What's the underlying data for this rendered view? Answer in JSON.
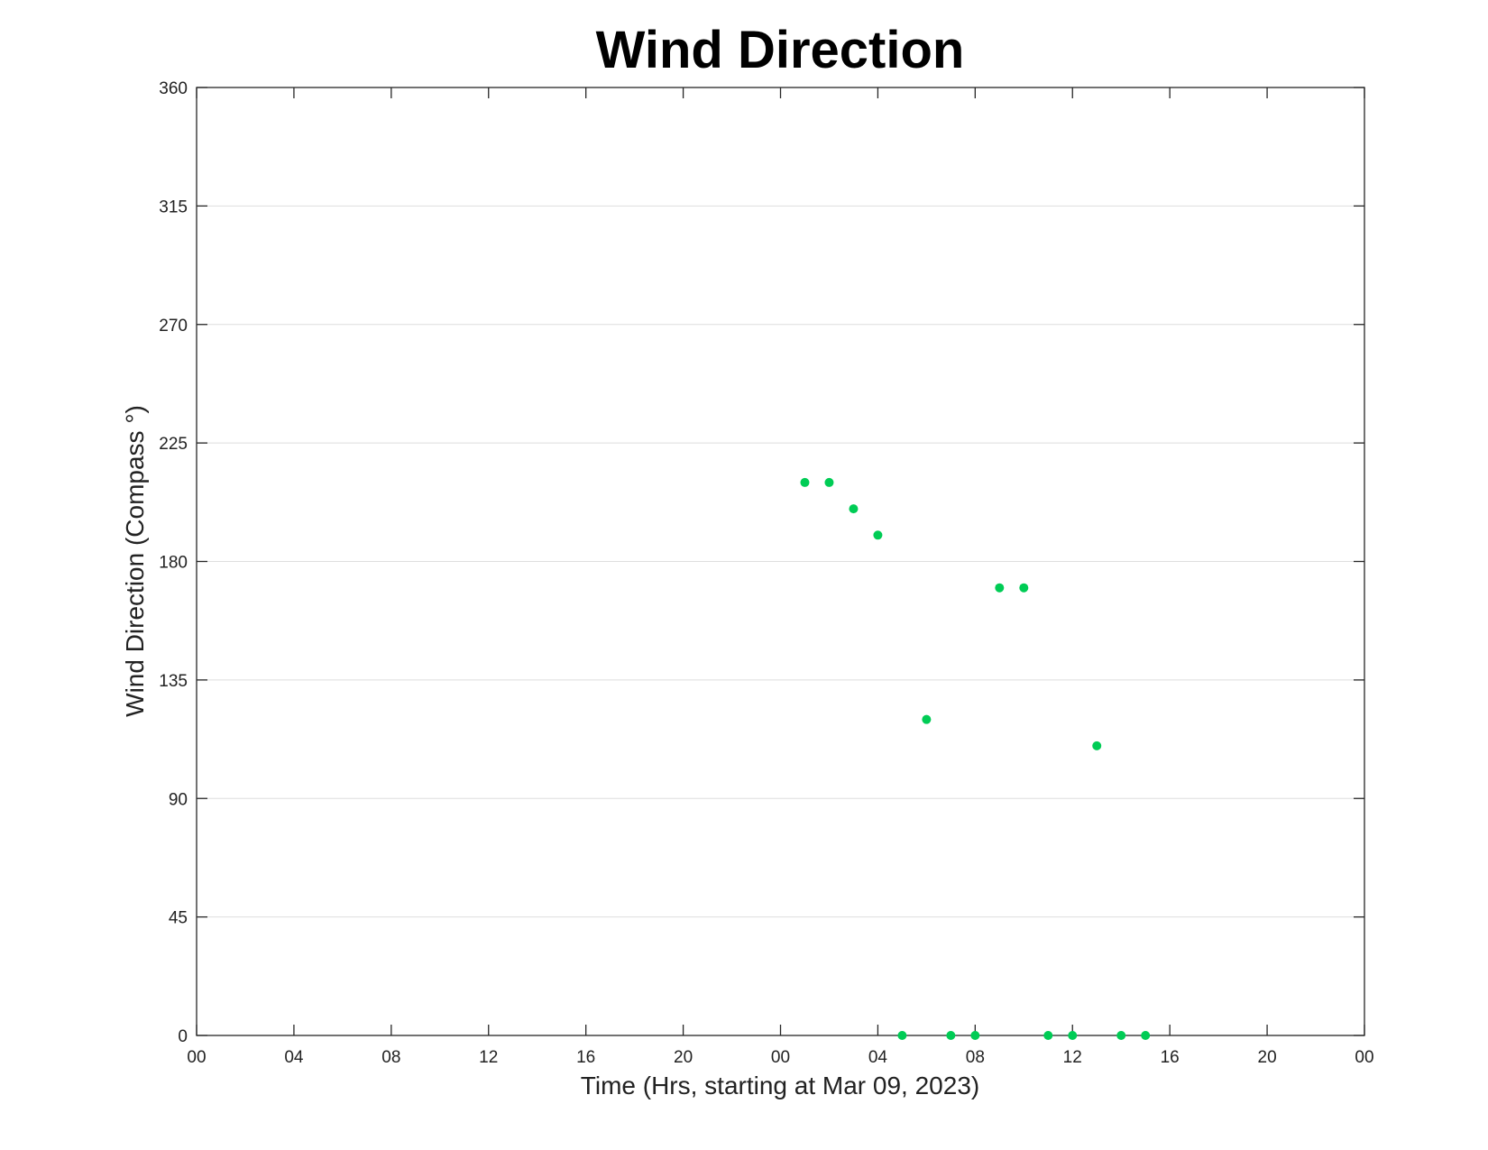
{
  "chart_data": {
    "type": "scatter",
    "title": "Wind Direction",
    "xlabel": "Time (Hrs, starting at Mar 09, 2023)",
    "ylabel": "Wind Direction (Compass °)",
    "xlim": [
      "2023-03-09 00:00",
      "2023-03-11 00:00"
    ],
    "ylim": [
      0,
      360
    ],
    "x_tick_labels": [
      "00",
      "04",
      "08",
      "12",
      "16",
      "20",
      "00",
      "04",
      "08",
      "12",
      "16",
      "20",
      "00"
    ],
    "y_tick_labels": [
      "0",
      "45",
      "90",
      "135",
      "180",
      "225",
      "270",
      "315",
      "360"
    ],
    "grid": "horizontal",
    "marker_color": "#00cc55",
    "series": [
      {
        "points": [
          {
            "x": "2023-03-10 01:00",
            "y": 210
          },
          {
            "x": "2023-03-10 02:00",
            "y": 210
          },
          {
            "x": "2023-03-10 03:00",
            "y": 200
          },
          {
            "x": "2023-03-10 04:00",
            "y": 190
          },
          {
            "x": "2023-03-10 05:00",
            "y": 0
          },
          {
            "x": "2023-03-10 06:00",
            "y": 120
          },
          {
            "x": "2023-03-10 07:00",
            "y": 0
          },
          {
            "x": "2023-03-10 08:00",
            "y": 0
          },
          {
            "x": "2023-03-10 09:00",
            "y": 170
          },
          {
            "x": "2023-03-10 10:00",
            "y": 170
          },
          {
            "x": "2023-03-10 11:00",
            "y": 0
          },
          {
            "x": "2023-03-10 12:00",
            "y": 0
          },
          {
            "x": "2023-03-10 13:00",
            "y": 110
          },
          {
            "x": "2023-03-10 14:00",
            "y": 0
          },
          {
            "x": "2023-03-10 15:00",
            "y": 0
          }
        ]
      }
    ]
  }
}
